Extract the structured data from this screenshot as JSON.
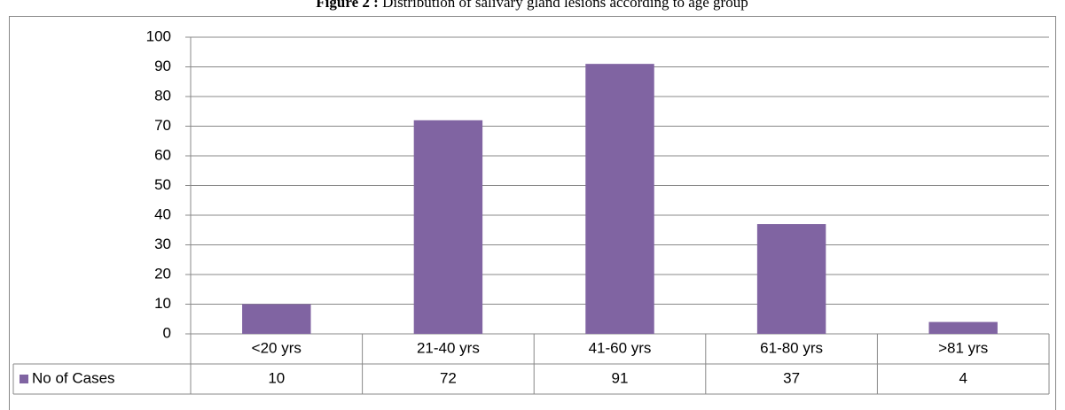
{
  "chart_data": {
    "type": "bar",
    "title_label": "Figure 2 :",
    "title": "Distribution of salivary gland lesions according to age group",
    "categories": [
      "<20 yrs",
      "21-40 yrs",
      "41-60 yrs",
      "61-80 yrs",
      ">81 yrs"
    ],
    "series": [
      {
        "name": "No of Cases",
        "color": "#8064a2",
        "values": [
          10,
          72,
          91,
          37,
          4
        ]
      }
    ],
    "ylim": [
      0,
      100
    ],
    "yticks": [
      0,
      10,
      20,
      30,
      40,
      50,
      60,
      70,
      80,
      90,
      100
    ],
    "grid": true
  }
}
